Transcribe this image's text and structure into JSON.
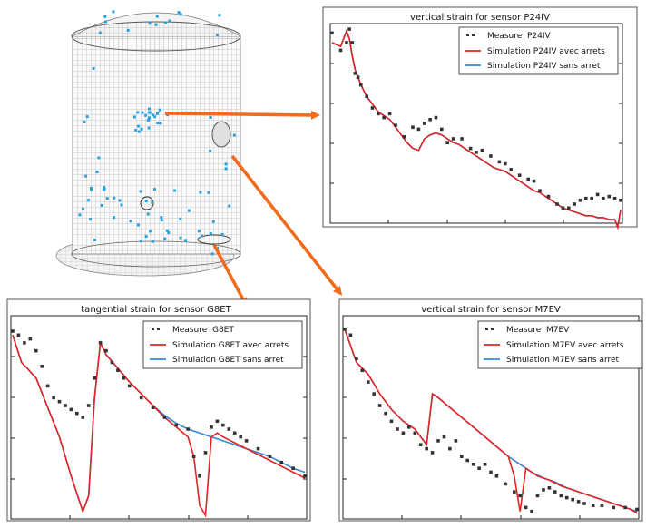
{
  "colors": {
    "measure": "#333333",
    "avec": "#e02424",
    "sans": "#3a86d4",
    "arrow": "#f26a1b",
    "sensor": "#2aa0dc",
    "mesh": "#8c8c8c"
  },
  "chart_data": [
    {
      "type": "line",
      "title": "vertical strain for sensor P24IV",
      "xlabel": "",
      "ylabel": "",
      "legend_position": "top-right",
      "series": [
        {
          "name": "Measure  P24IV",
          "style": "markers",
          "x": [
            0,
            3,
            5,
            6,
            7,
            8,
            9,
            10,
            12,
            14,
            16,
            18,
            20,
            22,
            25,
            28,
            30,
            32,
            34,
            36,
            38,
            40,
            42,
            45,
            48,
            50,
            52,
            55,
            58,
            60,
            62,
            65,
            68,
            70,
            72,
            75,
            78,
            80,
            82,
            84,
            86,
            88,
            90,
            92,
            94,
            96,
            98,
            100
          ],
          "y": [
            0.97,
            0.88,
            0.92,
            0.99,
            0.92,
            0.76,
            0.74,
            0.7,
            0.64,
            0.58,
            0.55,
            0.53,
            0.55,
            0.49,
            0.43,
            0.48,
            0.47,
            0.5,
            0.52,
            0.53,
            0.47,
            0.4,
            0.42,
            0.42,
            0.37,
            0.35,
            0.36,
            0.33,
            0.3,
            0.29,
            0.26,
            0.23,
            0.21,
            0.2,
            0.15,
            0.12,
            0.08,
            0.06,
            0.06,
            0.08,
            0.1,
            0.11,
            0.11,
            0.13,
            0.11,
            0.12,
            0.11,
            0.1
          ]
        },
        {
          "name": "Simulation P24IV avec arrets",
          "style": "line",
          "x": [
            0,
            3,
            5,
            6,
            7,
            8,
            10,
            12,
            14,
            16,
            18,
            20,
            22,
            24,
            26,
            28,
            30,
            32,
            34,
            36,
            38,
            40,
            42,
            44,
            46,
            48,
            50,
            52,
            54,
            56,
            58,
            60,
            62,
            64,
            66,
            68,
            70,
            72,
            74,
            76,
            78,
            80,
            82,
            84,
            86,
            88,
            90,
            92,
            94,
            96,
            98,
            99,
            100
          ],
          "y": [
            0.92,
            0.9,
            0.98,
            0.94,
            0.85,
            0.78,
            0.7,
            0.64,
            0.6,
            0.56,
            0.54,
            0.52,
            0.48,
            0.44,
            0.4,
            0.37,
            0.36,
            0.42,
            0.44,
            0.45,
            0.44,
            0.42,
            0.4,
            0.39,
            0.37,
            0.35,
            0.33,
            0.31,
            0.29,
            0.27,
            0.26,
            0.25,
            0.23,
            0.21,
            0.19,
            0.17,
            0.15,
            0.14,
            0.12,
            0.1,
            0.08,
            0.06,
            0.05,
            0.04,
            0.03,
            0.02,
            0.02,
            0.01,
            0.01,
            0.0,
            0.0,
            -0.04,
            0.05
          ]
        },
        {
          "name": "Simulation P24IV sans arret",
          "style": "line",
          "x": [
            0,
            3,
            5,
            6,
            7,
            8,
            10,
            12,
            14,
            16,
            18,
            20,
            22,
            24,
            26,
            28,
            30,
            32,
            34,
            36,
            38,
            40,
            42,
            44,
            46,
            48,
            50,
            52,
            54,
            56,
            58,
            60,
            62,
            64,
            66,
            68,
            70,
            72,
            74,
            76,
            78,
            80,
            82,
            84,
            86,
            88,
            90,
            92,
            94,
            96,
            98,
            99,
            100
          ],
          "y": [
            0.92,
            0.9,
            0.98,
            0.94,
            0.85,
            0.78,
            0.7,
            0.64,
            0.6,
            0.56,
            0.54,
            0.52,
            0.48,
            0.44,
            0.4,
            0.37,
            0.36,
            0.42,
            0.44,
            0.45,
            0.44,
            0.42,
            0.4,
            0.39,
            0.37,
            0.35,
            0.33,
            0.31,
            0.29,
            0.27,
            0.26,
            0.25,
            0.23,
            0.21,
            0.19,
            0.17,
            0.15,
            0.14,
            0.12,
            0.1,
            0.08,
            0.06,
            0.05,
            0.04,
            0.03,
            0.02,
            0.02,
            0.01,
            0.01,
            0.0,
            0.0,
            -0.04,
            0.05
          ]
        }
      ]
    },
    {
      "type": "line",
      "title": "tangential strain for sensor G8ET",
      "xlabel": "",
      "ylabel": "",
      "legend_position": "top-right",
      "series": [
        {
          "name": "Measure  G8ET",
          "style": "markers",
          "x": [
            0,
            2,
            4,
            6,
            8,
            10,
            12,
            14,
            16,
            18,
            20,
            22,
            24,
            26,
            28,
            30,
            32,
            34,
            36,
            38,
            40,
            44,
            48,
            52,
            56,
            60,
            62,
            64,
            66,
            68,
            70,
            72,
            74,
            76,
            78,
            80,
            84,
            88,
            92,
            96,
            100
          ],
          "y": [
            0.94,
            0.92,
            0.88,
            0.9,
            0.84,
            0.76,
            0.66,
            0.6,
            0.58,
            0.56,
            0.54,
            0.52,
            0.5,
            0.56,
            0.7,
            0.88,
            0.84,
            0.78,
            0.74,
            0.7,
            0.66,
            0.6,
            0.55,
            0.5,
            0.46,
            0.44,
            0.3,
            0.2,
            0.32,
            0.45,
            0.48,
            0.46,
            0.44,
            0.42,
            0.4,
            0.38,
            0.34,
            0.3,
            0.27,
            0.24,
            0.2
          ]
        },
        {
          "name": "Simulation G8ET avec arrets",
          "style": "line",
          "x": [
            0,
            3,
            5,
            8,
            12,
            16,
            20,
            24,
            26,
            28,
            30,
            32,
            36,
            40,
            44,
            48,
            52,
            56,
            60,
            62,
            64,
            66,
            68,
            70,
            72,
            76,
            80,
            84,
            88,
            92,
            96,
            100
          ],
          "y": [
            0.92,
            0.78,
            0.75,
            0.7,
            0.55,
            0.4,
            0.2,
            0.02,
            0.1,
            0.6,
            0.88,
            0.82,
            0.75,
            0.68,
            0.62,
            0.56,
            0.5,
            0.45,
            0.4,
            0.3,
            0.05,
            0.0,
            0.4,
            0.42,
            0.4,
            0.37,
            0.34,
            0.31,
            0.28,
            0.25,
            0.22,
            0.19
          ]
        },
        {
          "name": "Simulation G8ET sans arret",
          "style": "line",
          "x": [
            0,
            3,
            5,
            8,
            12,
            16,
            20,
            24,
            26,
            28,
            30,
            32,
            36,
            40,
            44,
            48,
            52,
            56,
            60,
            64,
            68,
            72,
            76,
            80,
            84,
            88,
            92,
            96,
            100
          ],
          "y": [
            0.92,
            0.78,
            0.75,
            0.7,
            0.55,
            0.4,
            0.2,
            0.02,
            0.1,
            0.6,
            0.88,
            0.82,
            0.75,
            0.68,
            0.62,
            0.56,
            0.51,
            0.47,
            0.44,
            0.42,
            0.4,
            0.38,
            0.36,
            0.34,
            0.32,
            0.3,
            0.27,
            0.24,
            0.22
          ]
        }
      ]
    },
    {
      "type": "line",
      "title": "vertical strain for sensor M7EV",
      "xlabel": "",
      "ylabel": "",
      "legend_position": "top-right",
      "series": [
        {
          "name": "Measure  M7EV",
          "style": "markers",
          "x": [
            0,
            2,
            4,
            6,
            8,
            10,
            12,
            14,
            16,
            18,
            20,
            22,
            24,
            26,
            28,
            30,
            32,
            34,
            36,
            38,
            40,
            42,
            44,
            46,
            48,
            50,
            52,
            55,
            58,
            60,
            62,
            64,
            66,
            68,
            70,
            72,
            74,
            76,
            78,
            80,
            82,
            85,
            88,
            92,
            96,
            100
          ],
          "y": [
            0.95,
            0.92,
            0.8,
            0.74,
            0.68,
            0.62,
            0.56,
            0.52,
            0.48,
            0.44,
            0.42,
            0.45,
            0.42,
            0.36,
            0.34,
            0.32,
            0.38,
            0.4,
            0.34,
            0.38,
            0.3,
            0.28,
            0.26,
            0.24,
            0.26,
            0.22,
            0.2,
            0.16,
            0.12,
            0.1,
            0.04,
            0.02,
            0.1,
            0.13,
            0.14,
            0.12,
            0.1,
            0.09,
            0.08,
            0.07,
            0.06,
            0.05,
            0.05,
            0.04,
            0.04,
            0.03
          ]
        },
        {
          "name": "Simulation M7EV avec arrets",
          "style": "line",
          "x": [
            0,
            4,
            8,
            12,
            16,
            20,
            24,
            28,
            30,
            32,
            36,
            40,
            44,
            48,
            52,
            56,
            58,
            60,
            62,
            64,
            66,
            70,
            74,
            78,
            82,
            86,
            90,
            94,
            98,
            100
          ],
          "y": [
            0.95,
            0.78,
            0.72,
            0.62,
            0.54,
            0.48,
            0.44,
            0.36,
            0.62,
            0.6,
            0.55,
            0.5,
            0.45,
            0.4,
            0.35,
            0.3,
            0.2,
            0.02,
            0.24,
            0.22,
            0.2,
            0.18,
            0.15,
            0.13,
            0.11,
            0.09,
            0.07,
            0.05,
            0.03,
            0.01
          ]
        },
        {
          "name": "Simulation M7EV sans arret",
          "style": "line",
          "x": [
            0,
            4,
            8,
            12,
            16,
            20,
            24,
            28,
            30,
            32,
            36,
            40,
            44,
            48,
            52,
            56,
            60,
            64,
            68,
            72,
            76,
            80,
            84,
            88,
            92,
            96,
            100
          ],
          "y": [
            0.95,
            0.78,
            0.72,
            0.62,
            0.54,
            0.48,
            0.44,
            0.36,
            0.62,
            0.6,
            0.55,
            0.5,
            0.45,
            0.4,
            0.35,
            0.3,
            0.26,
            0.22,
            0.19,
            0.17,
            0.14,
            0.12,
            0.1,
            0.08,
            0.06,
            0.04,
            0.02
          ]
        }
      ]
    }
  ]
}
